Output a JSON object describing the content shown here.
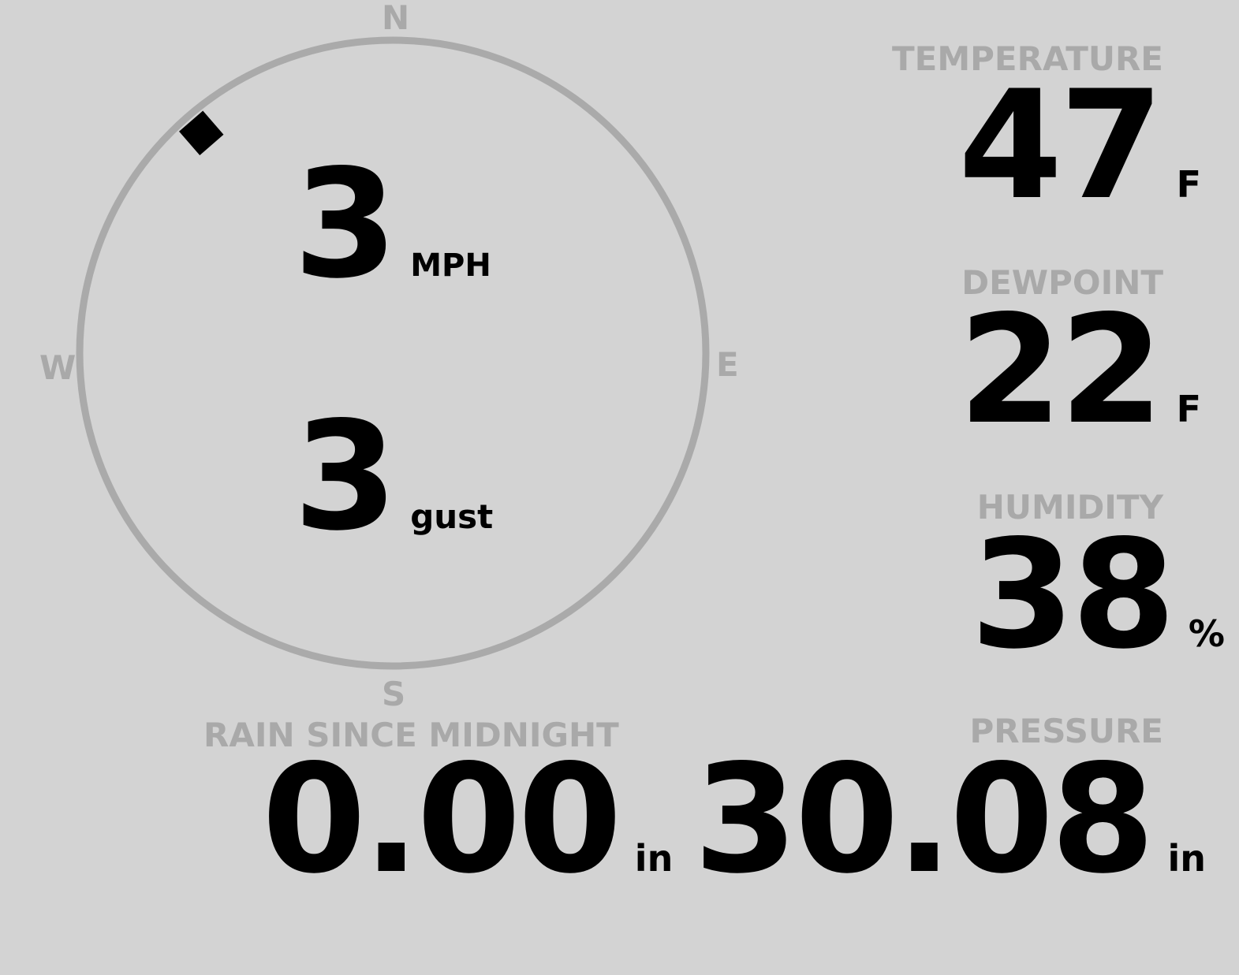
{
  "colors": {
    "background": "#d3d3d3",
    "label": "#a9a9a9",
    "ring": "#aaaaaa",
    "value": "#000000"
  },
  "wind": {
    "cardinals": {
      "n": "N",
      "e": "E",
      "s": "S",
      "w": "W"
    },
    "direction_deg": 319,
    "marker_icon": "diamond-icon",
    "speed": "3",
    "speed_unit": "MPH",
    "gust": "3",
    "gust_unit": "gust"
  },
  "temperature": {
    "label": "TEMPERATURE",
    "value": "47",
    "unit": "F"
  },
  "dewpoint": {
    "label": "DEWPOINT",
    "value": "22",
    "unit": "F"
  },
  "humidity": {
    "label": "HUMIDITY",
    "value": "38",
    "unit": "%"
  },
  "rain": {
    "label": "RAIN SINCE MIDNIGHT",
    "value": "0.00",
    "unit": "in"
  },
  "pressure": {
    "label": "PRESSURE",
    "value": "30.08",
    "unit": "in"
  }
}
